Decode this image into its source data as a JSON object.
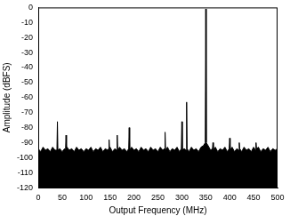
{
  "chart_data": {
    "type": "line",
    "x_label": "Output Frequency (MHz)",
    "y_label": "Amplitude (dBFS)",
    "x": [
      0,
      5,
      10,
      15,
      20,
      25,
      30,
      35,
      39,
      40,
      41,
      45,
      50,
      55,
      57,
      58,
      59,
      60,
      65,
      70,
      75,
      80,
      85,
      90,
      95,
      100,
      105,
      110,
      115,
      120,
      125,
      130,
      135,
      140,
      145,
      147,
      148,
      149,
      150,
      155,
      160,
      164,
      165,
      166,
      170,
      175,
      180,
      185,
      189,
      190,
      191,
      195,
      200,
      205,
      210,
      215,
      220,
      225,
      230,
      235,
      240,
      245,
      250,
      255,
      260,
      264,
      265,
      266,
      270,
      275,
      280,
      285,
      290,
      295,
      299,
      300,
      301,
      305,
      309,
      310,
      311,
      315,
      320,
      325,
      330,
      335,
      340,
      345,
      349,
      350,
      351,
      355,
      360,
      364,
      365,
      366,
      370,
      375,
      380,
      385,
      390,
      395,
      399,
      400,
      401,
      405,
      410,
      415,
      419,
      420,
      421,
      425,
      430,
      435,
      440,
      445,
      450,
      454,
      455,
      456,
      460,
      465,
      470,
      475,
      480,
      485,
      490,
      495,
      500
    ],
    "values": [
      -94,
      -96,
      -93,
      -95,
      -94,
      -96,
      -93,
      -95,
      -95,
      -76,
      -95,
      -94,
      -96,
      -94,
      -95,
      -85,
      -95,
      -93,
      -95,
      -94,
      -96,
      -93,
      -95,
      -94,
      -96,
      -94,
      -95,
      -93,
      -96,
      -94,
      -95,
      -93,
      -96,
      -94,
      -95,
      -94,
      -88,
      -95,
      -93,
      -96,
      -94,
      -95,
      -85,
      -95,
      -93,
      -95,
      -94,
      -96,
      -94,
      -80,
      -95,
      -93,
      -95,
      -94,
      -96,
      -93,
      -95,
      -94,
      -96,
      -93,
      -95,
      -94,
      -96,
      -93,
      -95,
      -94,
      -83,
      -95,
      -93,
      -96,
      -94,
      -95,
      -93,
      -96,
      -94,
      -76,
      -95,
      -94,
      -95,
      -63,
      -94,
      -96,
      -93,
      -95,
      -94,
      -96,
      -93,
      -92,
      -90,
      -1,
      -90,
      -92,
      -95,
      -94,
      -90,
      -95,
      -93,
      -96,
      -94,
      -95,
      -93,
      -96,
      -94,
      -87,
      -95,
      -93,
      -96,
      -94,
      -95,
      -90,
      -94,
      -96,
      -93,
      -95,
      -94,
      -96,
      -93,
      -95,
      -90,
      -94,
      -93,
      -96,
      -94,
      -95,
      -93,
      -96,
      -94,
      -95,
      -94
    ],
    "color": "#000000",
    "xlim": [
      0,
      500
    ],
    "ylim": [
      -120,
      0
    ],
    "xticks": [
      0,
      50,
      100,
      150,
      200,
      250,
      300,
      350,
      400,
      450,
      500
    ],
    "yticks": [
      -120,
      -110,
      -100,
      -90,
      -80,
      -70,
      -60,
      -50,
      -40,
      -30,
      -20,
      -10,
      0
    ],
    "grid": false
  }
}
